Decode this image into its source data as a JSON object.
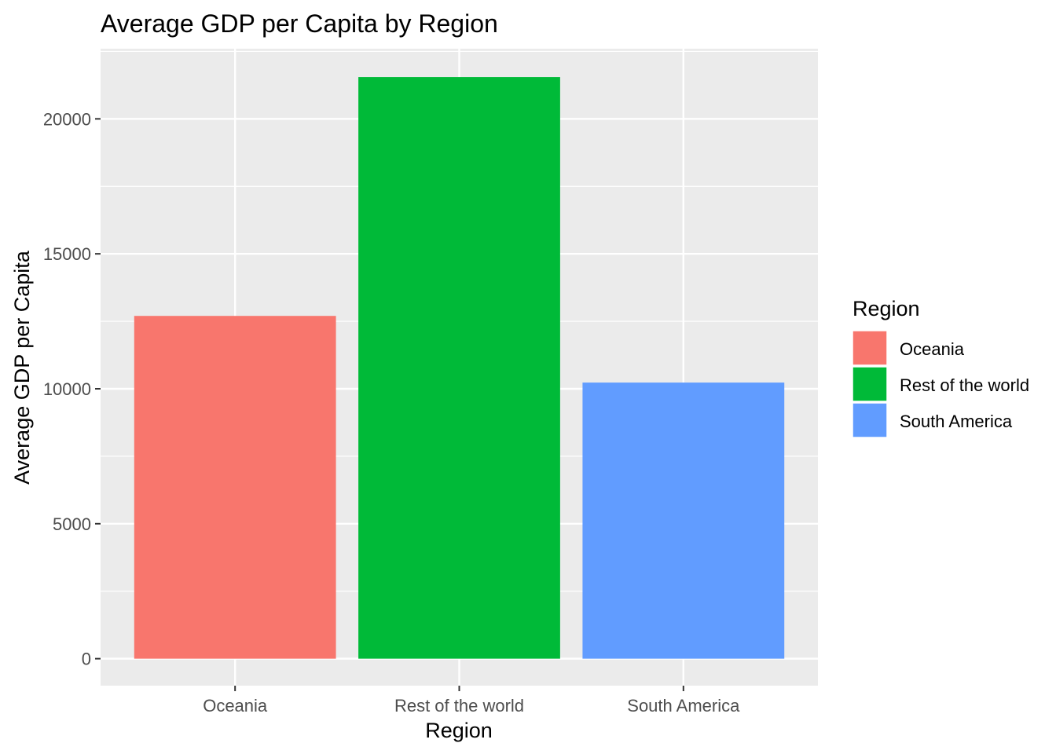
{
  "chart_data": {
    "type": "bar",
    "title": "Average GDP per Capita by Region",
    "xlabel": "Region",
    "ylabel": "Average GDP per Capita",
    "categories": [
      "Oceania",
      "Rest of the world",
      "South America"
    ],
    "values": [
      12700,
      21550,
      10230
    ],
    "ylim": [
      -1000,
      22600
    ],
    "yticks": [
      0,
      5000,
      10000,
      15000,
      20000
    ],
    "ytick_labels": [
      "0",
      "5000",
      "10000",
      "15000",
      "20000"
    ],
    "grid": true,
    "legend": {
      "title": "Region",
      "position": "right",
      "entries": [
        "Oceania",
        "Rest of the world",
        "South America"
      ]
    },
    "colors": [
      "#F8766D",
      "#00BA38",
      "#619CFF"
    ],
    "panel_background": "#EBEBEB",
    "grid_color": "#FFFFFF"
  }
}
